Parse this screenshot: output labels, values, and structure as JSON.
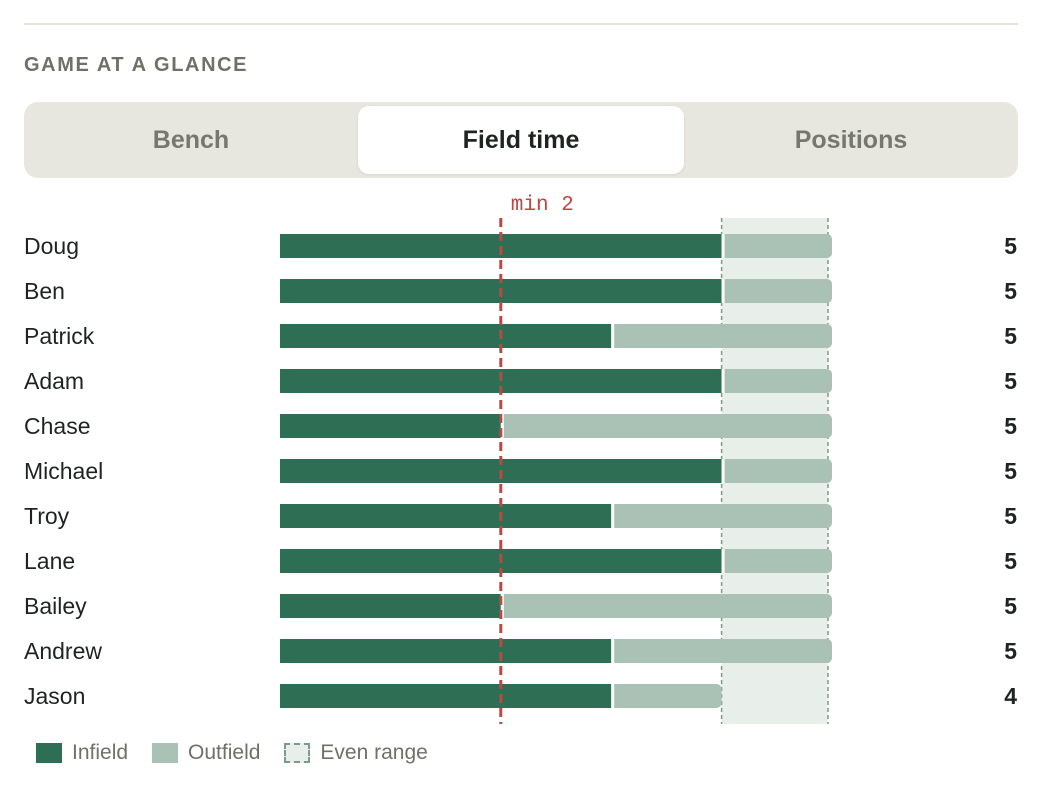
{
  "section": {
    "title": "GAME AT A GLANCE"
  },
  "tabs": [
    {
      "label": "Bench",
      "active": false
    },
    {
      "label": "Field time",
      "active": true
    },
    {
      "label": "Positions",
      "active": false
    }
  ],
  "colors": {
    "infield": "#2e6e55",
    "outfield": "#a9c2b5",
    "even_range_fill": "#e8efeb",
    "even_range_border": "#7c9a8b",
    "min_marker": "#c0463f"
  },
  "chart_data": {
    "type": "bar",
    "stacked": true,
    "orientation": "horizontal",
    "categories": [
      "Doug",
      "Ben",
      "Patrick",
      "Adam",
      "Chase",
      "Michael",
      "Troy",
      "Lane",
      "Bailey",
      "Andrew",
      "Jason"
    ],
    "series": [
      {
        "name": "Infield",
        "values": [
          4,
          4,
          3,
          4,
          2,
          4,
          3,
          4,
          2,
          3,
          3
        ]
      },
      {
        "name": "Outfield",
        "values": [
          1,
          1,
          2,
          1,
          3,
          1,
          2,
          1,
          3,
          2,
          1
        ]
      }
    ],
    "totals": [
      "5",
      "5",
      "5",
      "5",
      "5",
      "5",
      "5",
      "5",
      "5",
      "5",
      "4"
    ],
    "xlim": [
      0,
      5
    ],
    "min_marker": {
      "value": 2,
      "label": "min 2"
    },
    "even_range": {
      "from": 4,
      "to": 5,
      "label": "Even range"
    },
    "legend": [
      "Infield",
      "Outfield",
      "Even range"
    ]
  }
}
